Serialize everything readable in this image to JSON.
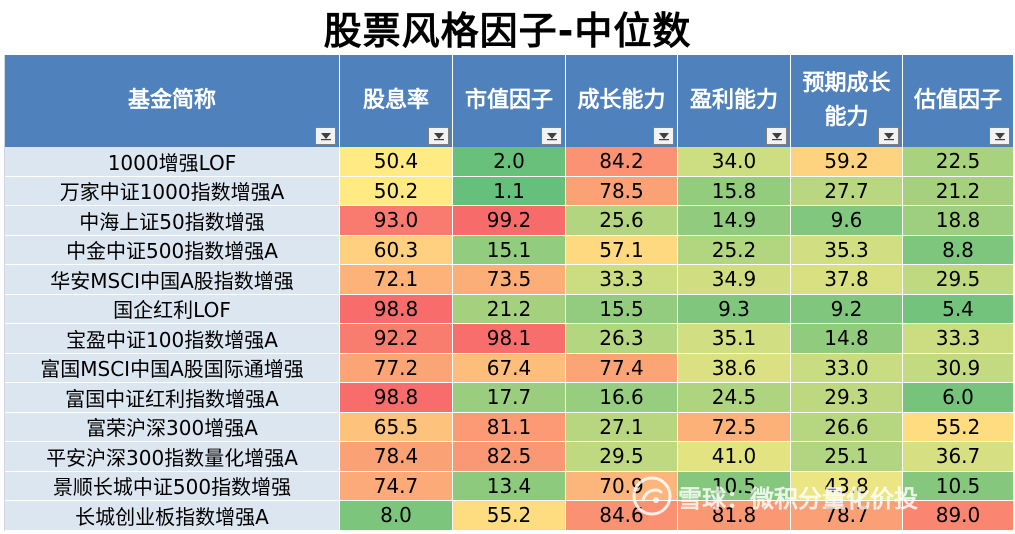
{
  "title": "股票风格因子-中位数",
  "headers": [
    "基金简称",
    "股息率",
    "市值因子",
    "成长能力",
    "盈利能力",
    "预期成长\n能力",
    "估值因子"
  ],
  "rows": [
    {
      "name": "1000增强LOF",
      "values": [
        "50.4",
        "2.0",
        "84.2",
        "34.0",
        "59.2",
        "22.5"
      ]
    },
    {
      "name": "万家中证1000指数增强A",
      "values": [
        "50.2",
        "1.1",
        "78.5",
        "15.8",
        "27.7",
        "21.2"
      ]
    },
    {
      "name": "中海上证50指数增强",
      "values": [
        "93.0",
        "99.2",
        "25.6",
        "14.9",
        "9.6",
        "18.8"
      ]
    },
    {
      "name": "中金中证500指数增强A",
      "values": [
        "60.3",
        "15.1",
        "57.1",
        "25.2",
        "35.3",
        "8.8"
      ]
    },
    {
      "name": "华安MSCI中国A股指数增强",
      "values": [
        "72.1",
        "73.5",
        "33.3",
        "34.9",
        "37.8",
        "29.5"
      ]
    },
    {
      "name": "国企红利LOF",
      "values": [
        "98.8",
        "21.2",
        "15.5",
        "9.3",
        "9.2",
        "5.4"
      ]
    },
    {
      "name": "宝盈中证100指数增强A",
      "values": [
        "92.2",
        "98.1",
        "26.3",
        "35.1",
        "14.8",
        "33.3"
      ]
    },
    {
      "name": "富国MSCI中国A股国际通增强",
      "values": [
        "77.2",
        "67.4",
        "77.4",
        "38.6",
        "33.0",
        "30.9"
      ]
    },
    {
      "name": "富国中证红利指数增强A",
      "values": [
        "98.8",
        "17.7",
        "16.6",
        "24.5",
        "29.3",
        "6.0"
      ]
    },
    {
      "name": "富荣沪深300增强A",
      "values": [
        "65.5",
        "81.1",
        "27.1",
        "72.5",
        "26.6",
        "55.2"
      ]
    },
    {
      "name": "平安沪深300指数量化增强A",
      "values": [
        "78.4",
        "82.5",
        "29.5",
        "41.0",
        "25.1",
        "36.7"
      ]
    },
    {
      "name": "景顺长城中证500指数增强",
      "values": [
        "74.7",
        "13.4",
        "70.9",
        "10.5",
        "43.8",
        "10.5"
      ]
    },
    {
      "name": "长城创业板指数增强A",
      "values": [
        "8.0",
        "55.2",
        "84.6",
        "81.8",
        "78.7",
        "89.0"
      ]
    }
  ],
  "watermark": "雪球：微积分量化价投",
  "colors": {
    "header_bg": "#4f81bd",
    "name_bg": "#dce6f1"
  }
}
